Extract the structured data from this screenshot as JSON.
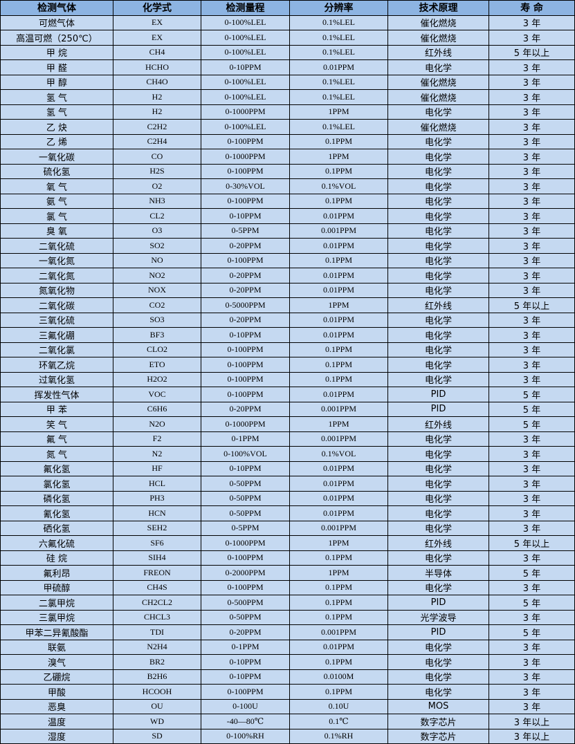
{
  "table": {
    "headers": [
      "检测气体",
      "化学式",
      "检测量程",
      "分辨率",
      "技术原理",
      "寿 命"
    ],
    "rows": [
      [
        "可燃气体",
        "EX",
        "0-100%LEL",
        "0.1%LEL",
        "催化燃烧",
        "3 年"
      ],
      [
        "高温可燃（250℃）",
        "EX",
        "0-100%LEL",
        "0.1%LEL",
        "催化燃烧",
        "3 年"
      ],
      [
        "甲 烷",
        "CH4",
        "0-100%LEL",
        "0.1%LEL",
        "红外线",
        "5 年以上"
      ],
      [
        "甲 醛",
        "HCHO",
        "0-10PPM",
        "0.01PPM",
        "电化学",
        "3 年"
      ],
      [
        "甲 醇",
        "CH4O",
        "0-100%LEL",
        "0.1%LEL",
        "催化燃烧",
        "3 年"
      ],
      [
        "氢 气",
        "H2",
        "0-100%LEL",
        "0.1%LEL",
        "催化燃烧",
        "3 年"
      ],
      [
        "氢 气",
        "H2",
        "0-1000PPM",
        "1PPM",
        "电化学",
        "3 年"
      ],
      [
        "乙 炔",
        "C2H2",
        "0-100%LEL",
        "0.1%LEL",
        "催化燃烧",
        "3 年"
      ],
      [
        "乙 烯",
        "C2H4",
        "0-100PPM",
        "0.1PPM",
        "电化学",
        "3 年"
      ],
      [
        "一氧化碳",
        "CO",
        "0-1000PPM",
        "1PPM",
        "电化学",
        "3 年"
      ],
      [
        "硫化氢",
        "H2S",
        "0-100PPM",
        "0.1PPM",
        "电化学",
        "3 年"
      ],
      [
        "氧 气",
        "O2",
        "0-30%VOL",
        "0.1%VOL",
        "电化学",
        "3 年"
      ],
      [
        "氨 气",
        "NH3",
        "0-100PPM",
        "0.1PPM",
        "电化学",
        "3 年"
      ],
      [
        "氯 气",
        "CL2",
        "0-10PPM",
        "0.01PPM",
        "电化学",
        "3 年"
      ],
      [
        "臭 氧",
        "O3",
        "0-5PPM",
        "0.001PPM",
        "电化学",
        "3 年"
      ],
      [
        "二氧化硫",
        "SO2",
        "0-20PPM",
        "0.01PPM",
        "电化学",
        "3 年"
      ],
      [
        "一氧化氮",
        "NO",
        "0-100PPM",
        "0.1PPM",
        "电化学",
        "3 年"
      ],
      [
        "二氧化氮",
        "NO2",
        "0-20PPM",
        "0.01PPM",
        "电化学",
        "3 年"
      ],
      [
        "氮氧化物",
        "NOX",
        "0-20PPM",
        "0.01PPM",
        "电化学",
        "3 年"
      ],
      [
        "二氧化碳",
        "CO2",
        "0-5000PPM",
        "1PPM",
        "红外线",
        "5 年以上"
      ],
      [
        "三氧化硫",
        "SO3",
        "0-20PPM",
        "0.01PPM",
        "电化学",
        "3 年"
      ],
      [
        "三氟化硼",
        "BF3",
        "0-10PPM",
        "0.01PPM",
        "电化学",
        "3 年"
      ],
      [
        "二氧化氯",
        "CLO2",
        "0-100PPM",
        "0.1PPM",
        "电化学",
        "3 年"
      ],
      [
        "环氧乙烷",
        "ETO",
        "0-100PPM",
        "0.1PPM",
        "电化学",
        "3 年"
      ],
      [
        "过氧化氢",
        "H2O2",
        "0-100PPM",
        "0.1PPM",
        "电化学",
        "3 年"
      ],
      [
        "挥发性气体",
        "VOC",
        "0-100PPM",
        "0.01PPM",
        "PID",
        "5 年"
      ],
      [
        "甲 苯",
        "C6H6",
        "0-20PPM",
        "0.001PPM",
        "PID",
        "5 年"
      ],
      [
        "笑 气",
        "N2O",
        "0-1000PPM",
        "1PPM",
        "红外线",
        "5 年"
      ],
      [
        "氟 气",
        "F2",
        "0-1PPM",
        "0.001PPM",
        "电化学",
        "3 年"
      ],
      [
        "氮 气",
        "N2",
        "0-100%VOL",
        "0.1%VOL",
        "电化学",
        "3 年"
      ],
      [
        "氟化氢",
        "HF",
        "0-10PPM",
        "0.01PPM",
        "电化学",
        "3 年"
      ],
      [
        "氯化氢",
        "HCL",
        "0-50PPM",
        "0.01PPM",
        "电化学",
        "3 年"
      ],
      [
        "磷化氢",
        "PH3",
        "0-50PPM",
        "0.01PPM",
        "电化学",
        "3 年"
      ],
      [
        "氰化氢",
        "HCN",
        "0-50PPM",
        "0.01PPM",
        "电化学",
        "3 年"
      ],
      [
        "硒化氢",
        "SEH2",
        "0-5PPM",
        "0.001PPM",
        "电化学",
        "3 年"
      ],
      [
        "六氟化硫",
        "SF6",
        "0-1000PPM",
        "1PPM",
        "红外线",
        "5 年以上"
      ],
      [
        "硅 烷",
        "SIH4",
        "0-100PPM",
        "0.1PPM",
        "电化学",
        "3 年"
      ],
      [
        "氟利昂",
        "FREON",
        "0-2000PPM",
        "1PPM",
        "半导体",
        "5 年"
      ],
      [
        "甲硫醇",
        "CH4S",
        "0-100PPM",
        "0.1PPM",
        "电化学",
        "3 年"
      ],
      [
        "二氯甲烷",
        "CH2CL2",
        "0-500PPM",
        "0.1PPM",
        "PID",
        "5 年"
      ],
      [
        "三氯甲烷",
        "CHCL3",
        "0-50PPM",
        "0.1PPM",
        "光学波导",
        "3 年"
      ],
      [
        "甲苯二异氰酸酯",
        "TDI",
        "0-20PPM",
        "0.001PPM",
        "PID",
        "5 年"
      ],
      [
        "联氨",
        "N2H4",
        "0-1PPM",
        "0.01PPM",
        "电化学",
        "3 年"
      ],
      [
        "溴气",
        "BR2",
        "0-10PPM",
        "0.1PPM",
        "电化学",
        "3 年"
      ],
      [
        "乙硼烷",
        "B2H6",
        "0-10PPM",
        "0.0100M",
        "电化学",
        "3 年"
      ],
      [
        "甲酸",
        "HCOOH",
        "0-100PPM",
        "0.1PPM",
        "电化学",
        "3 年"
      ],
      [
        "恶臭",
        "OU",
        "0-100U",
        "0.10U",
        "MOS",
        "3 年"
      ],
      [
        "温度",
        "WD",
        "-40—80℃",
        "0.1℃",
        "数字芯片",
        "3 年以上"
      ],
      [
        "湿度",
        "SD",
        "0-100%RH",
        "0.1%RH",
        "数字芯片",
        "3 年以上"
      ]
    ]
  },
  "colors": {
    "header_bg": "#8db4e2",
    "row_bg": "#c5d9f1",
    "border": "#000000"
  }
}
